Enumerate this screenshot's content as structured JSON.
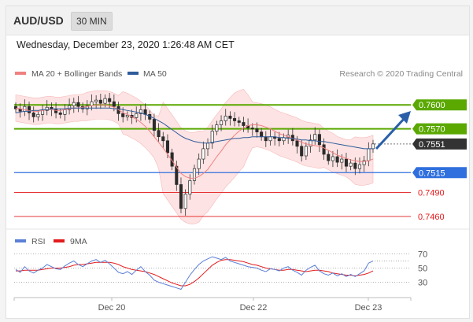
{
  "header": {
    "pair": "AUD/USD",
    "timeframe": "30 MIN"
  },
  "timestamp": "Wednesday, December 23, 2020 1:26:48 AM CET",
  "legend": {
    "items": [
      {
        "label": "MA 20 + Bollinger Bands",
        "color": "#f08080"
      },
      {
        "label": "MA 50",
        "color": "#2e5c9a"
      }
    ],
    "research": "Research © 2020 Trading Central"
  },
  "rsi_legend": [
    {
      "label": "RSI",
      "color": "#5b7fd6"
    },
    {
      "label": "9MA",
      "color": "#e31a1c"
    }
  ],
  "colors": {
    "up": "#2c8c2c",
    "down": "#c0392b",
    "resistance": "#5aa800",
    "support": "#2f6fde",
    "target": "#e31a1c",
    "arrow": "#2a5fa8",
    "current": "#333333",
    "band": "#fcdada"
  },
  "chart_data": [
    {
      "type": "line",
      "title": "AUD/USD 30 MIN",
      "x_ticks": [
        "Dec 20",
        "Dec 22",
        "Dec 23"
      ],
      "ylim": [
        0.7455,
        0.7618
      ],
      "current_price": 0.7551,
      "levels": [
        {
          "label": "0.7600",
          "value": 0.76,
          "kind": "resistance"
        },
        {
          "label": "0.7570",
          "value": 0.757,
          "kind": "resistance"
        },
        {
          "label": "0.7551",
          "value": 0.7551,
          "kind": "current"
        },
        {
          "label": "0.7515",
          "value": 0.7515,
          "kind": "support"
        },
        {
          "label": "0.7490",
          "value": 0.749,
          "kind": "target"
        },
        {
          "label": "0.7460",
          "value": 0.746,
          "kind": "target"
        }
      ],
      "close": [
        0.7595,
        0.7592,
        0.7598,
        0.759,
        0.7585,
        0.7588,
        0.7593,
        0.7597,
        0.7595,
        0.759,
        0.7588,
        0.7594,
        0.7599,
        0.7603,
        0.7598,
        0.7595,
        0.7599,
        0.7604,
        0.7606,
        0.7602,
        0.7608,
        0.7604,
        0.7598,
        0.7589,
        0.7585,
        0.7587,
        0.7584,
        0.7589,
        0.7594,
        0.7588,
        0.7582,
        0.7568,
        0.756,
        0.7555,
        0.754,
        0.7523,
        0.75,
        0.747,
        0.7488,
        0.7505,
        0.752,
        0.7532,
        0.7545,
        0.7552,
        0.7567,
        0.7575,
        0.758,
        0.7586,
        0.7583,
        0.758,
        0.7578,
        0.7574,
        0.7571,
        0.757,
        0.7566,
        0.756,
        0.7555,
        0.756,
        0.7558,
        0.7555,
        0.7559,
        0.7562,
        0.7555,
        0.7548,
        0.7536,
        0.7548,
        0.7556,
        0.7563,
        0.755,
        0.7538,
        0.753,
        0.7535,
        0.7528,
        0.7532,
        0.7523,
        0.7527,
        0.752,
        0.7525,
        0.753,
        0.7545,
        0.7551
      ],
      "ma20": [
        0.7596,
        0.7595,
        0.7594,
        0.7593,
        0.7592,
        0.7592,
        0.7593,
        0.7594,
        0.7594,
        0.7593,
        0.7593,
        0.7594,
        0.7595,
        0.7596,
        0.7596,
        0.7597,
        0.7598,
        0.7599,
        0.76,
        0.76,
        0.76,
        0.7599,
        0.7597,
        0.7594,
        0.759,
        0.7588,
        0.7585,
        0.7582,
        0.7578,
        0.7573,
        0.7567,
        0.756,
        0.7553,
        0.7546,
        0.7538,
        0.753,
        0.7522,
        0.7514,
        0.751,
        0.7508,
        0.7508,
        0.751,
        0.7514,
        0.7519,
        0.7527,
        0.7535,
        0.7542,
        0.755,
        0.7556,
        0.7562,
        0.7567,
        0.7571,
        0.7574,
        0.7575,
        0.7575,
        0.7574,
        0.7572,
        0.757,
        0.7567,
        0.7564,
        0.7562,
        0.756,
        0.7558,
        0.7556,
        0.7553,
        0.7551,
        0.755,
        0.7549,
        0.7548,
        0.7546,
        0.7543,
        0.754,
        0.7537,
        0.7535,
        0.7533,
        0.7531,
        0.753,
        0.7529,
        0.7529,
        0.753,
        0.7532
      ],
      "ma50": [
        0.759,
        0.7591,
        0.7592,
        0.7592,
        0.7593,
        0.7593,
        0.7594,
        0.7594,
        0.7595,
        0.7595,
        0.7595,
        0.7595,
        0.7596,
        0.7596,
        0.7596,
        0.7596,
        0.7596,
        0.7596,
        0.7596,
        0.7596,
        0.7596,
        0.7596,
        0.7595,
        0.7595,
        0.7594,
        0.7593,
        0.7592,
        0.7591,
        0.759,
        0.7588,
        0.7586,
        0.7583,
        0.758,
        0.7577,
        0.7573,
        0.7569,
        0.7565,
        0.7561,
        0.7558,
        0.7556,
        0.7554,
        0.7553,
        0.7552,
        0.7552,
        0.7553,
        0.7554,
        0.7555,
        0.7556,
        0.7557,
        0.7558,
        0.7558,
        0.7559,
        0.7559,
        0.756,
        0.756,
        0.756,
        0.756,
        0.756,
        0.756,
        0.7559,
        0.7559,
        0.7558,
        0.7558,
        0.7557,
        0.7556,
        0.7556,
        0.7555,
        0.7555,
        0.7554,
        0.7554,
        0.7553,
        0.7552,
        0.7551,
        0.755,
        0.7549,
        0.7548,
        0.7547,
        0.7546,
        0.7545,
        0.7545,
        0.7545
      ]
    },
    {
      "type": "line",
      "title": "RSI",
      "y_ticks": [
        70,
        50,
        30
      ],
      "ylim": [
        15,
        75
      ],
      "series": [
        {
          "name": "RSI",
          "values": [
            48,
            44,
            52,
            46,
            43,
            47,
            50,
            55,
            52,
            49,
            48,
            53,
            57,
            60,
            55,
            52,
            56,
            60,
            62,
            58,
            61,
            56,
            50,
            44,
            42,
            45,
            41,
            47,
            52,
            45,
            40,
            33,
            30,
            28,
            26,
            24,
            22,
            20,
            30,
            40,
            48,
            55,
            60,
            63,
            66,
            64,
            62,
            65,
            60,
            58,
            56,
            54,
            52,
            51,
            50,
            47,
            45,
            49,
            48,
            46,
            50,
            52,
            47,
            44,
            40,
            47,
            51,
            54,
            46,
            42,
            40,
            43,
            39,
            42,
            38,
            41,
            38,
            42,
            46,
            57,
            60
          ]
        },
        {
          "name": "9MA",
          "values": [
            46,
            46,
            47,
            47,
            47,
            47,
            48,
            49,
            50,
            50,
            50,
            51,
            52,
            54,
            55,
            55,
            56,
            57,
            58,
            58,
            58,
            58,
            57,
            55,
            52,
            50,
            48,
            47,
            46,
            45,
            43,
            41,
            38,
            35,
            32,
            29,
            27,
            25,
            25,
            27,
            31,
            36,
            42,
            48,
            54,
            58,
            61,
            62,
            62,
            61,
            60,
            59,
            57,
            55,
            54,
            52,
            50,
            49,
            48,
            47,
            47,
            48,
            48,
            47,
            46,
            45,
            46,
            47,
            47,
            46,
            45,
            43,
            42,
            41,
            40,
            40,
            39,
            40,
            41,
            43,
            46
          ]
        }
      ]
    }
  ]
}
